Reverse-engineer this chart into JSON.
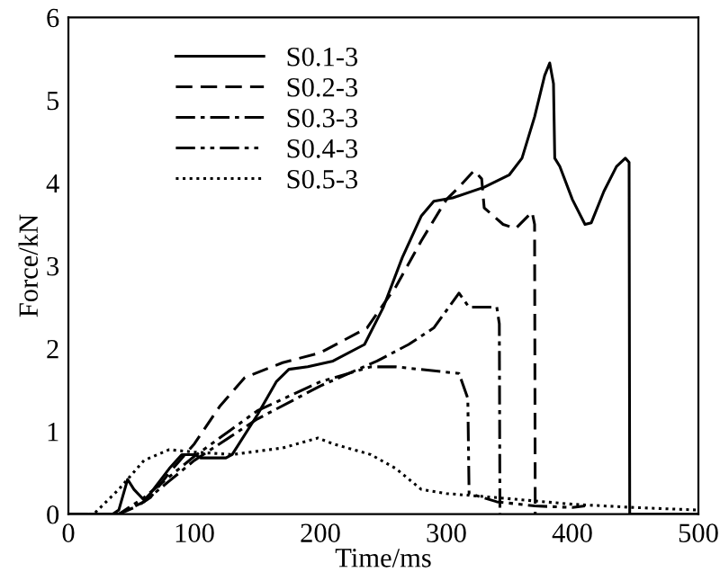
{
  "chart_data": {
    "type": "line",
    "xlabel": "Time/ms",
    "ylabel": "Force/kN",
    "xlim": [
      0,
      500
    ],
    "xticks": [
      0,
      100,
      200,
      300,
      400,
      500
    ],
    "ylim": [
      0,
      6
    ],
    "yticks": [
      0,
      1,
      2,
      3,
      4,
      5,
      6
    ],
    "grid": false,
    "legend": "top left",
    "marker": "none",
    "series": [
      {
        "name": "S0.1-3",
        "color": "#000000",
        "line_style": "solid",
        "x": [
          0,
          35,
          40,
          47,
          52,
          60,
          65,
          80,
          90,
          100,
          105,
          125,
          130,
          150,
          165,
          175,
          190,
          210,
          235,
          250,
          265,
          280,
          290,
          305,
          330,
          350,
          360,
          370,
          378,
          382,
          385,
          386,
          390,
          400,
          410,
          415,
          425,
          435,
          442,
          445,
          445.5,
          500
        ],
        "values": [
          0,
          0,
          0.05,
          0.42,
          0.3,
          0.17,
          0.25,
          0.55,
          0.72,
          0.72,
          0.68,
          0.68,
          0.72,
          1.2,
          1.6,
          1.75,
          1.78,
          1.85,
          2.05,
          2.5,
          3.1,
          3.6,
          3.78,
          3.82,
          3.95,
          4.1,
          4.3,
          4.8,
          5.3,
          5.45,
          5.2,
          4.3,
          4.2,
          3.8,
          3.5,
          3.52,
          3.9,
          4.2,
          4.3,
          4.25,
          0,
          0
        ]
      },
      {
        "name": "S0.2-3",
        "color": "#000000",
        "line_style": "dashed",
        "x": [
          0,
          40,
          55,
          65,
          80,
          100,
          120,
          140,
          170,
          200,
          237,
          260,
          280,
          300,
          310,
          322,
          328,
          330,
          345,
          355,
          368,
          370,
          370.5
        ],
        "values": [
          0,
          0,
          0.1,
          0.2,
          0.5,
          0.85,
          1.3,
          1.65,
          1.83,
          1.95,
          2.25,
          2.75,
          3.3,
          3.8,
          3.95,
          4.15,
          4.05,
          3.7,
          3.5,
          3.45,
          3.65,
          3.5,
          0
        ]
      },
      {
        "name": "S0.3-3",
        "color": "#000000",
        "line_style": "dashdot",
        "x": [
          0,
          40,
          60,
          80,
          100,
          150,
          200,
          245,
          270,
          290,
          310,
          318,
          340,
          342,
          342.5
        ],
        "values": [
          0,
          0,
          0.15,
          0.4,
          0.65,
          1.15,
          1.55,
          1.85,
          2.05,
          2.25,
          2.67,
          2.5,
          2.5,
          2.3,
          0
        ]
      },
      {
        "name": "S0.4-3",
        "color": "#000000",
        "line_style": "dashdotdot",
        "x": [
          0,
          40,
          60,
          80,
          100,
          150,
          200,
          240,
          260,
          310,
          317,
          318,
          340,
          370,
          400,
          410
        ],
        "values": [
          0,
          0,
          0.2,
          0.45,
          0.7,
          1.25,
          1.6,
          1.78,
          1.78,
          1.7,
          1.4,
          0.25,
          0.15,
          0.1,
          0.08,
          0.1
        ]
      },
      {
        "name": "S0.5-3",
        "color": "#000000",
        "line_style": "dotted",
        "x": [
          0,
          20,
          40,
          60,
          80,
          100,
          130,
          170,
          198,
          210,
          240,
          260,
          280,
          300,
          340,
          400,
          450,
          500
        ],
        "values": [
          0,
          0,
          0.3,
          0.65,
          0.78,
          0.75,
          0.72,
          0.8,
          0.92,
          0.85,
          0.72,
          0.55,
          0.3,
          0.25,
          0.2,
          0.12,
          0.08,
          0.05
        ]
      }
    ]
  }
}
